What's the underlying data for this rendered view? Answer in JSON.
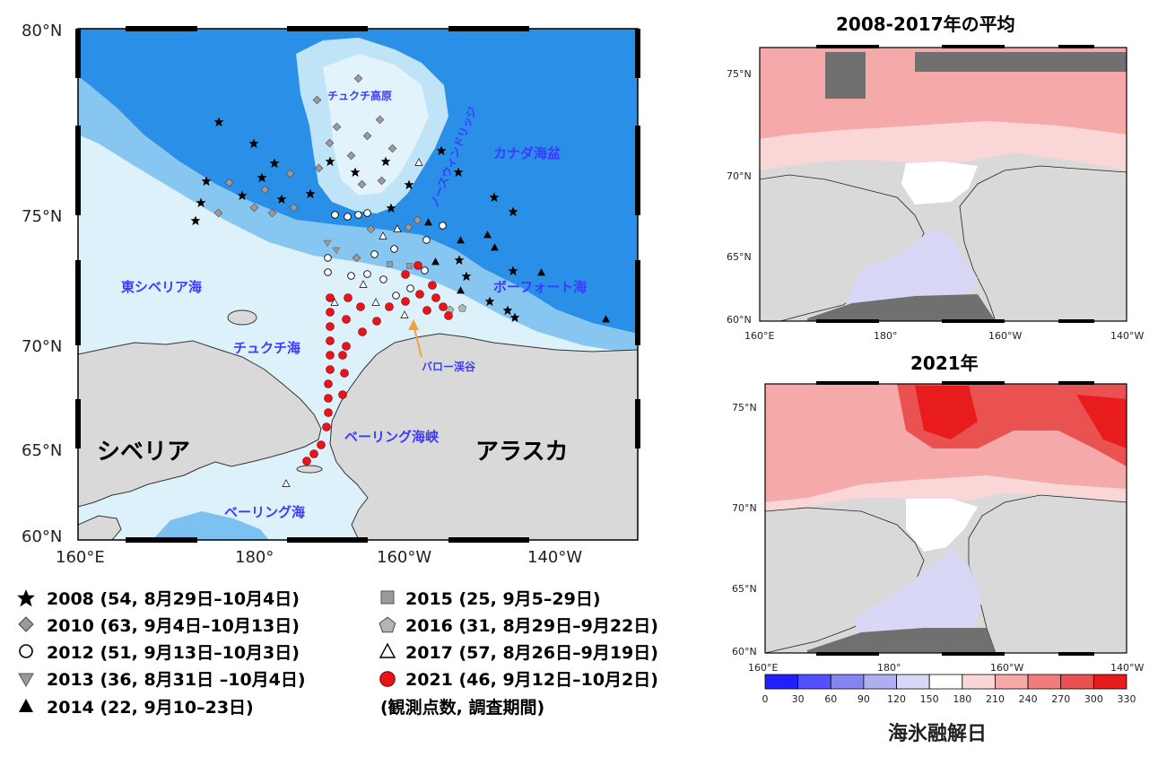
{
  "main_map": {
    "lat_labels": [
      "80°N",
      "75°N",
      "70°N",
      "65°N",
      "60°N"
    ],
    "lon_labels": [
      "160°E",
      "180°",
      "160°W",
      "140°W"
    ],
    "region_labels": {
      "chukchi_plateau": "チュクチ高原",
      "northwind_ridge": "ノースウィンドリッジ",
      "canada_basin": "カナダ海盆",
      "east_siberian_sea": "東シベリア海",
      "beaufort_sea": "ボーフォート海",
      "chukchi_sea": "チュクチ海",
      "barrow_canyon": "バロー渓谷",
      "bering_strait": "ベーリング海峡",
      "bering_sea": "ベーリング海"
    },
    "land_labels": {
      "siberia": "シベリア",
      "alaska": "アラスカ"
    }
  },
  "legend": {
    "entries": [
      {
        "marker": "star",
        "color": "#000000",
        "text": "2008 (54, 8月29日–10月4日)"
      },
      {
        "marker": "diamond",
        "color": "#9a9a9a",
        "text": "2010 (63, 9月4日–10月13日)"
      },
      {
        "marker": "circle-open",
        "color": "#000000",
        "text": "2012 (51, 9月13日–10月3日)"
      },
      {
        "marker": "triangle-down",
        "color": "#9a9a9a",
        "text": "2013 (36, 8月31日 –10月4日)"
      },
      {
        "marker": "triangle-up",
        "color": "#000000",
        "text": "2014 (22, 9月10–23日)"
      },
      {
        "marker": "square",
        "color": "#9a9a9a",
        "text": "2015 (25, 9月5–29日)"
      },
      {
        "marker": "pentagon",
        "color": "#b4b4b4",
        "text": "2016 (31, 8月29日–9月22日)"
      },
      {
        "marker": "triangle-open",
        "color": "#000000",
        "text": "2017 (57, 8月26日–9月19日)"
      },
      {
        "marker": "circle",
        "color": "#e8141a",
        "text": "2021 (46, 9月12日–10月2日)"
      }
    ],
    "note": "(観測点数, 調査期間)"
  },
  "panel_top": {
    "title": "2008-2017年の平均",
    "lat_labels": [
      "75°N",
      "70°N",
      "65°N",
      "60°N"
    ],
    "lon_labels": [
      "160°E",
      "180°",
      "160°W",
      "140°W"
    ]
  },
  "panel_bottom": {
    "title": "2021年",
    "lat_labels": [
      "75°N",
      "70°N",
      "65°N",
      "60°N"
    ],
    "lon_labels": [
      "160°E",
      "180°",
      "160°W",
      "140°W"
    ]
  },
  "colorbar": {
    "ticks": [
      "0",
      "30",
      "60",
      "90",
      "120",
      "150",
      "180",
      "210",
      "240",
      "270",
      "300",
      "330"
    ],
    "colors": [
      "#1f1fff",
      "#5252ff",
      "#8585f2",
      "#b0b0f0",
      "#d8d8f6",
      "#ffffff",
      "#fad6d6",
      "#f5a9a9",
      "#f07c7c",
      "#ea5252",
      "#e81c1c"
    ],
    "label": "海氷融解日"
  },
  "colors": {
    "deep_ocean": "#1f8fe8",
    "shelf_water": "#ddf1fb",
    "land": "#d9d9d9",
    "station_2021": "#e8141a"
  }
}
